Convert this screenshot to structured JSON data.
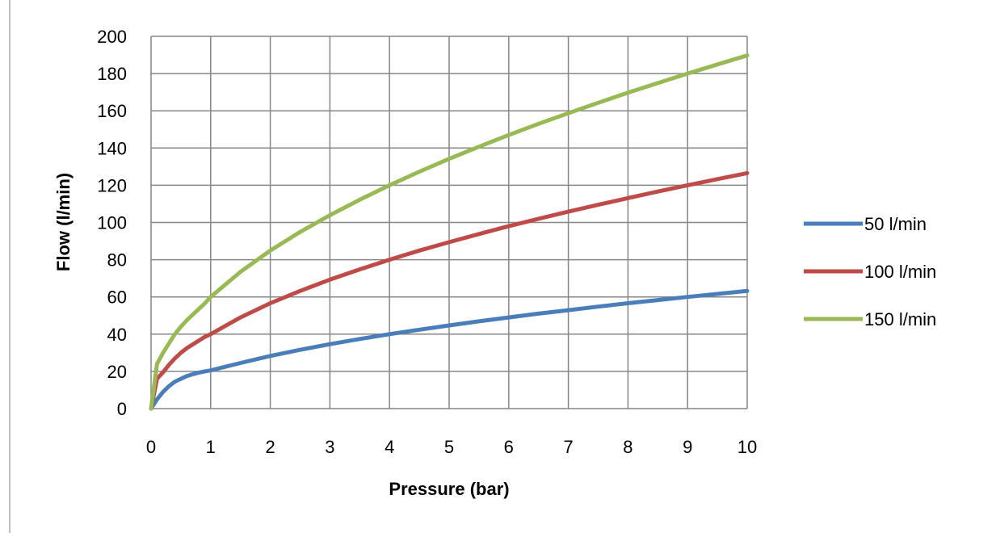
{
  "chart_data": {
    "type": "line",
    "title": "",
    "xlabel": "Pressure (bar)",
    "ylabel": "Flow (l/min)",
    "xlim": [
      0,
      10
    ],
    "ylim": [
      0,
      200
    ],
    "x_ticks": [
      0,
      1,
      2,
      3,
      4,
      5,
      6,
      7,
      8,
      9,
      10
    ],
    "y_ticks": [
      0,
      20,
      40,
      60,
      80,
      100,
      120,
      140,
      160,
      180,
      200
    ],
    "grid": true,
    "legend_position": "right",
    "x": [
      0,
      0.1,
      0.2,
      0.3,
      0.4,
      0.5,
      0.6,
      0.7,
      0.8,
      0.9,
      1,
      1.5,
      2,
      2.5,
      3,
      3.5,
      4,
      4.5,
      5,
      5.5,
      6,
      6.5,
      7,
      7.5,
      8,
      8.5,
      9,
      9.5,
      10
    ],
    "series": [
      {
        "name": "50 l/min",
        "color": "#4a7ebb",
        "values": [
          0,
          5,
          9,
          12,
          14.5,
          16,
          17.5,
          18.5,
          19.3,
          20,
          20.5,
          24.5,
          28.3,
          31.6,
          34.6,
          37.4,
          40,
          42.4,
          44.7,
          46.9,
          49,
          51,
          52.9,
          54.8,
          56.6,
          58.3,
          60,
          61.6,
          63.2
        ]
      },
      {
        "name": "100 l/min",
        "color": "#be4b48",
        "values": [
          0,
          16,
          19.5,
          23.5,
          27,
          30,
          32.5,
          34.5,
          36.5,
          38.5,
          40,
          49,
          56.6,
          63.2,
          69.3,
          74.8,
          80,
          84.9,
          89.4,
          93.8,
          98,
          102,
          105.8,
          109.5,
          113.1,
          116.6,
          120,
          123.3,
          126.5
        ]
      },
      {
        "name": "150 l/min",
        "color": "#98b954",
        "values": [
          0,
          24,
          30,
          35,
          40,
          44,
          47.5,
          50.5,
          53.5,
          56.5,
          60,
          73.5,
          84.9,
          94.9,
          103.9,
          112.2,
          120,
          127.3,
          134.2,
          140.7,
          147,
          153,
          158.7,
          164.3,
          169.7,
          174.9,
          180,
          184.9,
          189.7
        ]
      }
    ]
  }
}
